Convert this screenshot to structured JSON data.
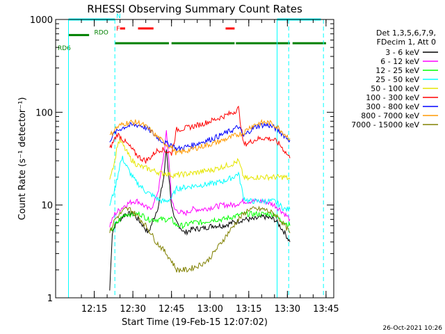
{
  "chart_data": {
    "type": "line",
    "title": "RHESSI Observing Summary Count Rates",
    "xlabel": "Start Time (19-Feb-15 12:07:02)",
    "ylabel": "Count Rate (s⁻¹ detector⁻¹)",
    "ylog": true,
    "ylim": [
      1,
      1000
    ],
    "xlim_min": [
      0,
      100
    ],
    "yticks": [
      {
        "v": 1,
        "label": "1"
      },
      {
        "v": 10,
        "label": "10"
      },
      {
        "v": 100,
        "label": "100"
      },
      {
        "v": 1000,
        "label": "1000"
      }
    ],
    "xticks": [
      {
        "t": 8,
        "label": "12:15"
      },
      {
        "t": 23,
        "label": "12:30"
      },
      {
        "t": 38,
        "label": "12:45"
      },
      {
        "t": 53,
        "label": "13:00"
      },
      {
        "t": 68,
        "label": "13:15"
      },
      {
        "t": 83,
        "label": "13:30"
      },
      {
        "t": 98,
        "label": "13:45"
      }
    ],
    "legend_header": [
      "Det 1,3,5,6,7,9,",
      "FDecim 1, Att 0"
    ],
    "series": [
      {
        "name": "3 - 6 keV",
        "color": "#000000",
        "points": [
          [
            14,
            1.2
          ],
          [
            15,
            5
          ],
          [
            16,
            6
          ],
          [
            18,
            7
          ],
          [
            20,
            8
          ],
          [
            23,
            8
          ],
          [
            25,
            7
          ],
          [
            27,
            6
          ],
          [
            29,
            5
          ],
          [
            31,
            7
          ],
          [
            33,
            10
          ],
          [
            35,
            20
          ],
          [
            36,
            40
          ],
          [
            37,
            20
          ],
          [
            38,
            10
          ],
          [
            39,
            7
          ],
          [
            41,
            6
          ],
          [
            43,
            5
          ],
          [
            46,
            5.5
          ],
          [
            50,
            5.6
          ],
          [
            54,
            6
          ],
          [
            58,
            6
          ],
          [
            62,
            6.5
          ],
          [
            66,
            7
          ],
          [
            70,
            7
          ],
          [
            74,
            7.5
          ],
          [
            78,
            7
          ],
          [
            80,
            6
          ],
          [
            82,
            5
          ],
          [
            84,
            4
          ]
        ]
      },
      {
        "name": "6 - 12 keV",
        "color": "#ff00ff",
        "points": [
          [
            14,
            6
          ],
          [
            16,
            8
          ],
          [
            18,
            9
          ],
          [
            20,
            10
          ],
          [
            23,
            11
          ],
          [
            25,
            11
          ],
          [
            27,
            10
          ],
          [
            29,
            9
          ],
          [
            31,
            10
          ],
          [
            33,
            15
          ],
          [
            35,
            35
          ],
          [
            36,
            60
          ],
          [
            37,
            30
          ],
          [
            38,
            12
          ],
          [
            39,
            9
          ],
          [
            41,
            8.5
          ],
          [
            43,
            8
          ],
          [
            46,
            9
          ],
          [
            50,
            9
          ],
          [
            54,
            9.5
          ],
          [
            58,
            10
          ],
          [
            62,
            10
          ],
          [
            66,
            11
          ],
          [
            70,
            11
          ],
          [
            74,
            11
          ],
          [
            78,
            10
          ],
          [
            80,
            9
          ],
          [
            82,
            8
          ],
          [
            84,
            7
          ]
        ]
      },
      {
        "name": "12 - 25 keV",
        "color": "#00ff00",
        "points": [
          [
            14,
            5
          ],
          [
            16,
            6
          ],
          [
            18,
            7
          ],
          [
            20,
            8
          ],
          [
            23,
            8
          ],
          [
            26,
            8
          ],
          [
            29,
            7
          ],
          [
            32,
            7
          ],
          [
            35,
            7
          ],
          [
            38,
            7
          ],
          [
            40,
            6
          ],
          [
            43,
            6
          ],
          [
            46,
            6.5
          ],
          [
            50,
            6.5
          ],
          [
            54,
            7
          ],
          [
            58,
            7
          ],
          [
            62,
            7.5
          ],
          [
            66,
            8
          ],
          [
            70,
            8
          ],
          [
            74,
            8
          ],
          [
            78,
            8
          ],
          [
            80,
            7
          ],
          [
            82,
            6.5
          ],
          [
            84,
            6
          ]
        ]
      },
      {
        "name": "25 - 50 keV",
        "color": "#00ffff",
        "points": [
          [
            14,
            10
          ],
          [
            16,
            15
          ],
          [
            17,
            20
          ],
          [
            18,
            28
          ],
          [
            19,
            32
          ],
          [
            20,
            28
          ],
          [
            22,
            22
          ],
          [
            24,
            18
          ],
          [
            26,
            16
          ],
          [
            28,
            14
          ],
          [
            30,
            13
          ],
          [
            32,
            12
          ],
          [
            34,
            11
          ],
          [
            36,
            11
          ],
          [
            38,
            12
          ],
          [
            40,
            15
          ],
          [
            43,
            15.5
          ],
          [
            46,
            16
          ],
          [
            50,
            16.5
          ],
          [
            54,
            17
          ],
          [
            58,
            18
          ],
          [
            62,
            20
          ],
          [
            64,
            22
          ],
          [
            66,
            12
          ],
          [
            68,
            11
          ],
          [
            70,
            11
          ],
          [
            74,
            11
          ],
          [
            78,
            11
          ],
          [
            80,
            10
          ],
          [
            82,
            9
          ],
          [
            84,
            9
          ]
        ]
      },
      {
        "name": "50 - 100 keV",
        "color": "#e6e600",
        "points": [
          [
            14,
            20
          ],
          [
            16,
            30
          ],
          [
            17,
            45
          ],
          [
            18,
            50
          ],
          [
            19,
            45
          ],
          [
            20,
            40
          ],
          [
            22,
            32
          ],
          [
            24,
            28
          ],
          [
            26,
            26
          ],
          [
            28,
            25
          ],
          [
            30,
            24
          ],
          [
            32,
            23
          ],
          [
            34,
            22
          ],
          [
            36,
            22
          ],
          [
            38,
            21
          ],
          [
            40,
            21
          ],
          [
            43,
            21.5
          ],
          [
            46,
            22
          ],
          [
            50,
            23
          ],
          [
            54,
            24
          ],
          [
            58,
            26
          ],
          [
            62,
            28
          ],
          [
            64,
            30
          ],
          [
            66,
            20
          ],
          [
            68,
            19
          ],
          [
            70,
            20
          ],
          [
            74,
            20
          ],
          [
            78,
            20
          ],
          [
            80,
            20
          ],
          [
            82,
            20
          ],
          [
            84,
            19
          ]
        ]
      },
      {
        "name": "100 - 300 keV",
        "color": "#ff0000",
        "points": [
          [
            14,
            40
          ],
          [
            16,
            52
          ],
          [
            17,
            58
          ],
          [
            18,
            55
          ],
          [
            20,
            48
          ],
          [
            22,
            42
          ],
          [
            24,
            36
          ],
          [
            26,
            32
          ],
          [
            28,
            30
          ],
          [
            30,
            33
          ],
          [
            32,
            38
          ],
          [
            34,
            40
          ],
          [
            36,
            38
          ],
          [
            38,
            36
          ],
          [
            40,
            65
          ],
          [
            43,
            67
          ],
          [
            46,
            70
          ],
          [
            50,
            75
          ],
          [
            54,
            82
          ],
          [
            58,
            90
          ],
          [
            62,
            100
          ],
          [
            64,
            110
          ],
          [
            66,
            45
          ],
          [
            68,
            47
          ],
          [
            70,
            50
          ],
          [
            72,
            52
          ],
          [
            74,
            53
          ],
          [
            76,
            52
          ],
          [
            78,
            50
          ],
          [
            80,
            45
          ],
          [
            82,
            38
          ],
          [
            84,
            32
          ]
        ]
      },
      {
        "name": "300 - 800 keV",
        "color": "#0000ff",
        "points": [
          [
            14,
            50
          ],
          [
            16,
            60
          ],
          [
            18,
            66
          ],
          [
            20,
            70
          ],
          [
            22,
            72
          ],
          [
            24,
            73
          ],
          [
            26,
            72
          ],
          [
            28,
            68
          ],
          [
            30,
            62
          ],
          [
            32,
            55
          ],
          [
            34,
            50
          ],
          [
            36,
            46
          ],
          [
            38,
            45
          ],
          [
            40,
            40
          ],
          [
            43,
            42
          ],
          [
            46,
            44
          ],
          [
            50,
            48
          ],
          [
            54,
            52
          ],
          [
            58,
            58
          ],
          [
            62,
            65
          ],
          [
            64,
            70
          ],
          [
            66,
            55
          ],
          [
            68,
            62
          ],
          [
            70,
            68
          ],
          [
            72,
            72
          ],
          [
            74,
            73
          ],
          [
            76,
            72
          ],
          [
            78,
            68
          ],
          [
            80,
            62
          ],
          [
            82,
            55
          ],
          [
            84,
            50
          ]
        ]
      },
      {
        "name": "800 - 7000 keV",
        "color": "#ff9900",
        "points": [
          [
            14,
            55
          ],
          [
            16,
            66
          ],
          [
            18,
            72
          ],
          [
            20,
            76
          ],
          [
            22,
            78
          ],
          [
            24,
            78
          ],
          [
            26,
            76
          ],
          [
            28,
            70
          ],
          [
            30,
            63
          ],
          [
            32,
            56
          ],
          [
            34,
            50
          ],
          [
            36,
            45
          ],
          [
            38,
            42
          ],
          [
            40,
            36
          ],
          [
            43,
            38
          ],
          [
            46,
            40
          ],
          [
            50,
            43
          ],
          [
            54,
            46
          ],
          [
            58,
            50
          ],
          [
            62,
            55
          ],
          [
            64,
            58
          ],
          [
            66,
            60
          ],
          [
            68,
            68
          ],
          [
            70,
            73
          ],
          [
            72,
            76
          ],
          [
            74,
            78
          ],
          [
            76,
            77
          ],
          [
            78,
            73
          ],
          [
            80,
            66
          ],
          [
            82,
            58
          ],
          [
            84,
            52
          ]
        ]
      },
      {
        "name": "7000 - 15000 keV",
        "color": "#808000",
        "points": [
          [
            14,
            5
          ],
          [
            16,
            7
          ],
          [
            18,
            8
          ],
          [
            20,
            9
          ],
          [
            22,
            9
          ],
          [
            24,
            8
          ],
          [
            26,
            7
          ],
          [
            28,
            6
          ],
          [
            30,
            5
          ],
          [
            32,
            4
          ],
          [
            34,
            3.5
          ],
          [
            36,
            3
          ],
          [
            38,
            2.5
          ],
          [
            40,
            2
          ],
          [
            44,
            2
          ],
          [
            48,
            2.2
          ],
          [
            52,
            2.5
          ],
          [
            56,
            3.5
          ],
          [
            60,
            5
          ],
          [
            64,
            7
          ],
          [
            66,
            8
          ],
          [
            68,
            9
          ],
          [
            70,
            9
          ],
          [
            74,
            9
          ],
          [
            78,
            8
          ],
          [
            80,
            7
          ],
          [
            82,
            6
          ],
          [
            84,
            5
          ]
        ]
      }
    ],
    "vlines": [
      {
        "t": -2,
        "style": "solid",
        "color": "#00ffff"
      },
      {
        "t": 16,
        "style": "dashed",
        "color": "#00ffff"
      },
      {
        "t": 79,
        "style": "solid",
        "color": "#00ffff"
      },
      {
        "t": 83.5,
        "style": "dashed",
        "color": "#00ffff"
      },
      {
        "t": 97,
        "style": "dashed",
        "color": "#00ffff"
      }
    ],
    "flag_bars": [
      {
        "label": "N",
        "color": "#00ffff",
        "row": 1000,
        "segments": [
          [
            -2,
            16
          ],
          [
            79,
            96
          ]
        ]
      },
      {
        "label": "F",
        "color": "#ff0000",
        "row": 800,
        "segments": [
          [
            18,
            20
          ],
          [
            25,
            31
          ],
          [
            59,
            62.5
          ]
        ]
      },
      {
        "label": "RDO",
        "color": "#008000",
        "row": 680,
        "segments": [
          [
            -2,
            6
          ]
        ]
      },
      {
        "label": "RD6",
        "color": "#008000",
        "row": 555,
        "segments": [
          [
            16,
            37
          ],
          [
            38,
            62.5
          ],
          [
            63,
            84
          ],
          [
            85,
            98
          ]
        ]
      }
    ],
    "stamp": "26-Oct-2021 10:26"
  }
}
